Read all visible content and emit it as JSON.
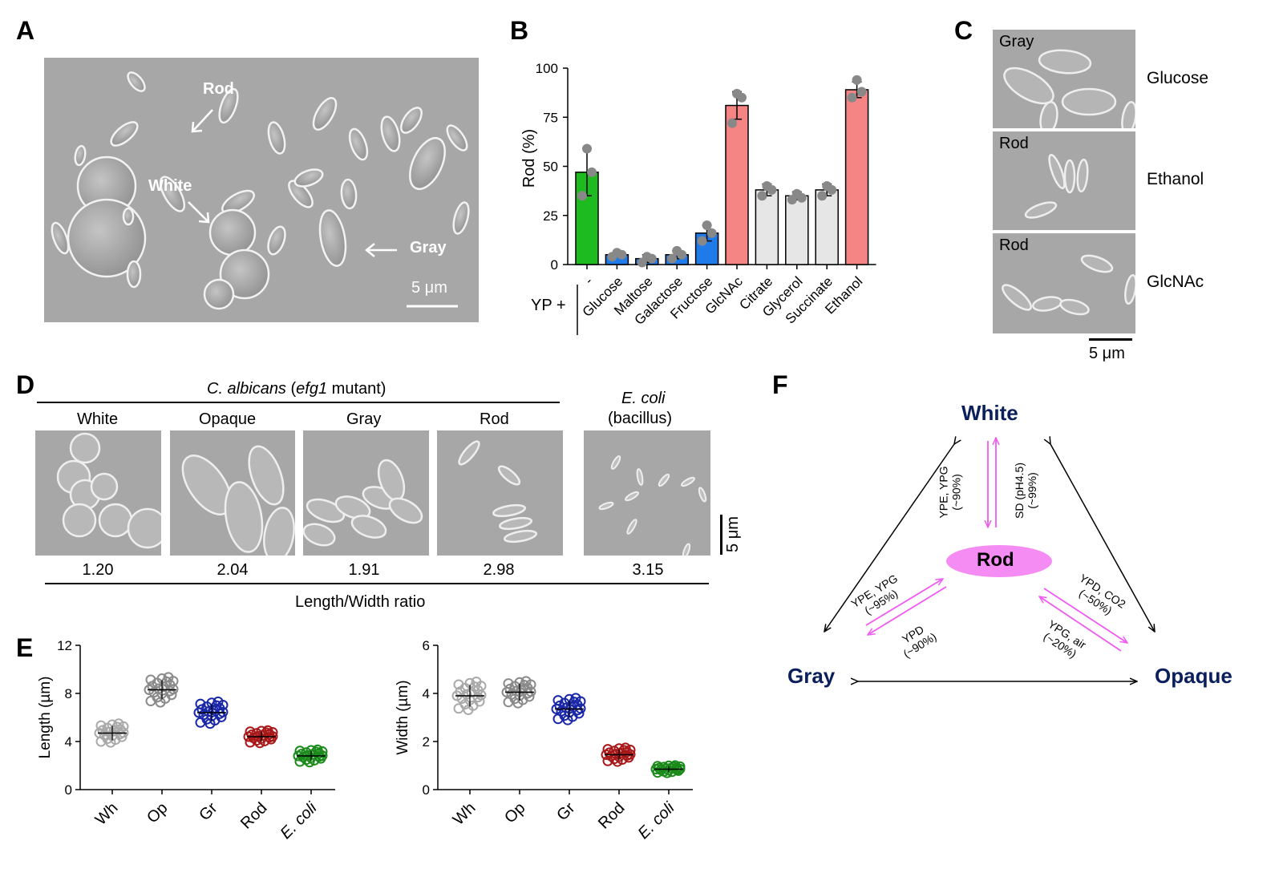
{
  "panels": {
    "A": "A",
    "B": "B",
    "C": "C",
    "D": "D",
    "E": "E",
    "F": "F"
  },
  "panelA": {
    "labels": {
      "rod": "Rod",
      "white": "White",
      "gray": "Gray"
    },
    "scalebar": "5 μm"
  },
  "panelB": {
    "ylabel": "Rod (%)",
    "yticks": [
      "0",
      "25",
      "50",
      "75",
      "100"
    ],
    "prefix": "YP +"
  },
  "panelC": {
    "rows": [
      {
        "state": "Gray",
        "condition": "Glucose"
      },
      {
        "state": "Rod",
        "condition": "Ethanol"
      },
      {
        "state": "Rod",
        "condition": "GlcNAc"
      }
    ],
    "scalebar": "5 μm"
  },
  "panelD": {
    "group_title_italic": "C. albicans",
    "group_title_open": "(",
    "group_title_gene": "efg1",
    "group_title_rest": " mutant)",
    "ecoli_title": "E. coli",
    "ecoli_sub": "(bacillus)",
    "columns": [
      "White",
      "Opaque",
      "Gray",
      "Rod"
    ],
    "ratios": [
      "1.20",
      "2.04",
      "1.91",
      "2.98",
      "3.15"
    ],
    "scalebar": "5 μm",
    "xlabel": "Length/Width ratio"
  },
  "panelF": {
    "nodes": {
      "white": "White",
      "gray": "Gray",
      "opaque": "Opaque",
      "rod": "Rod"
    },
    "arrows": {
      "white_to_rod_a": "YPE, YPG",
      "white_to_rod_b": "(~90%)",
      "rod_to_white_a": "SD (pH4.5)",
      "rod_to_white_b": "(~99%)",
      "gray_rod_a": "YPE, YPG",
      "gray_rod_b": "(~95%)",
      "rod_gray_a": "YPD",
      "rod_gray_b": "(~90%)",
      "rod_opaque_a": "YPD, CO2",
      "rod_opaque_b": "(~50%)",
      "opaque_rod_a": "YPG, air",
      "opaque_rod_b": "(~20%)"
    },
    "colors": {
      "accent": "#ef5bf2",
      "node_text": "#0a1f5c",
      "rod_fill": "#f58cf4"
    }
  },
  "chart_data": [
    {
      "type": "bar",
      "panel": "B",
      "title": "",
      "xlabel": "",
      "ylabel": "Rod (%)",
      "ylim": [
        0,
        100
      ],
      "categories": [
        "-",
        "Glucose",
        "Maltose",
        "Galactose",
        "Fructose",
        "GlcNAc",
        "Citrate",
        "Glycerol",
        "Succinate",
        "Ethanol"
      ],
      "values": [
        47,
        5,
        3,
        5,
        16,
        81,
        38,
        35,
        38,
        89
      ],
      "errors": [
        12,
        1,
        2,
        2,
        4,
        7,
        3,
        2,
        3,
        4
      ],
      "points": [
        [
          35,
          47,
          59
        ],
        [
          4,
          5,
          6
        ],
        [
          1,
          3,
          4
        ],
        [
          3,
          5,
          7
        ],
        [
          12,
          16,
          20
        ],
        [
          72,
          85,
          87
        ],
        [
          35,
          38,
          40
        ],
        [
          33,
          34,
          36
        ],
        [
          35,
          38,
          40
        ],
        [
          85,
          88,
          94
        ]
      ],
      "colors": [
        "#1dbb1f",
        "#1f7bea",
        "#1f7bea",
        "#1f7bea",
        "#1f7bea",
        "#f58585",
        "#e6e6e6",
        "#e6e6e6",
        "#e6e6e6",
        "#f58585"
      ]
    },
    {
      "type": "scatter",
      "panel": "E-length",
      "title": "",
      "xlabel": "",
      "ylabel": "Length (µm)",
      "ylim": [
        0,
        12
      ],
      "yticks": [
        "0",
        "4",
        "8",
        "12"
      ],
      "categories": [
        "Wh",
        "Op",
        "Gr",
        "Rod",
        "E. coli"
      ],
      "medians": [
        4.7,
        8.3,
        6.4,
        4.4,
        2.8
      ],
      "spread": [
        0.6,
        0.8,
        0.7,
        0.4,
        0.4
      ],
      "colors": [
        "#a9a9a9",
        "#8a8a8a",
        "#1a28a8",
        "#a81818",
        "#1a8a1a"
      ]
    },
    {
      "type": "scatter",
      "panel": "E-width",
      "title": "",
      "xlabel": "",
      "ylabel": "Width (µm)",
      "ylim": [
        0,
        6
      ],
      "yticks": [
        "0",
        "2",
        "4",
        "6"
      ],
      "categories": [
        "Wh",
        "Op",
        "Gr",
        "Rod",
        "E. coli"
      ],
      "medians": [
        3.9,
        4.05,
        3.35,
        1.45,
        0.85
      ],
      "spread": [
        0.45,
        0.35,
        0.35,
        0.22,
        0.12
      ],
      "colors": [
        "#a9a9a9",
        "#8a8a8a",
        "#1a28a8",
        "#a81818",
        "#1a8a1a"
      ]
    }
  ]
}
